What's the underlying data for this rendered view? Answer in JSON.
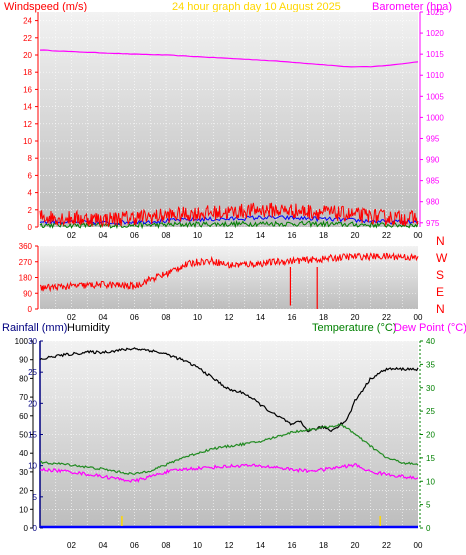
{
  "header": {
    "wind_label": "Windspeed (m/s)",
    "title": "24 hour graph day   10 August 2025",
    "baro_label": "Barometer (hpa)"
  },
  "lower_header": {
    "rain_label": "Rainfall (mm)",
    "humidity_label": "Humidity",
    "temp_label": "Temperature (°C)",
    "dew_label": "Dew Point (°C)"
  },
  "colors": {
    "windspeed": "#ff0000",
    "gust_blue": "#0000ff",
    "avg_green": "#008000",
    "barometer": "#ff00ff",
    "wind_direction": "#ff0000",
    "humidity": "#000000",
    "temperature": "#228b22",
    "dewpoint": "#ff00ff",
    "rainfall": "#0000ff",
    "title": "#ffd700",
    "rain_axis": "#000080",
    "temp_axis": "#008000"
  },
  "chart_data": [
    {
      "type": "line",
      "name": "wind-barometer",
      "x_ticks": [
        "02",
        "04",
        "06",
        "08",
        "10",
        "12",
        "14",
        "16",
        "18",
        "20",
        "22",
        "00"
      ],
      "y_left_ticks": [
        "0",
        "2",
        "4",
        "6",
        "8",
        "10",
        "12",
        "14",
        "16",
        "18",
        "20",
        "22",
        "24"
      ],
      "y_left_range": [
        0,
        25
      ],
      "y_right_ticks": [
        "975",
        "980",
        "985",
        "990",
        "995",
        "1000",
        "1005",
        "1010",
        "1015",
        "1020",
        "1025"
      ],
      "y_right_range": [
        974,
        1025
      ],
      "series": [
        {
          "name": "Windspeed",
          "axis": "left",
          "x": [
            0,
            2,
            4,
            6,
            8,
            10,
            12,
            14,
            16,
            18,
            20,
            22,
            24
          ],
          "y": [
            1.2,
            1.0,
            0.9,
            1.1,
            1.3,
            1.6,
            1.7,
            2.0,
            1.9,
            1.7,
            1.4,
            1.1,
            1.0
          ]
        },
        {
          "name": "Barometer",
          "axis": "right",
          "x": [
            0,
            2,
            4,
            6,
            8,
            10,
            12,
            14,
            16,
            18,
            19.5,
            21,
            22.5,
            24
          ],
          "y": [
            1016,
            1015.6,
            1015.3,
            1015.0,
            1014.8,
            1014.4,
            1014.0,
            1013.6,
            1013.1,
            1012.5,
            1012.0,
            1012.0,
            1012.5,
            1013.2
          ]
        }
      ]
    },
    {
      "type": "scatter",
      "name": "wind-direction",
      "x_ticks": [
        "02",
        "04",
        "06",
        "08",
        "10",
        "12",
        "14",
        "16",
        "18",
        "20",
        "22",
        "00"
      ],
      "y_ticks": [
        "0",
        "90",
        "180",
        "270",
        "360"
      ],
      "y_range": [
        0,
        360
      ],
      "compass_labels": [
        "N",
        "W",
        "S",
        "E",
        "N"
      ],
      "series": [
        {
          "name": "Wind direction",
          "x": [
            0,
            2,
            4,
            6,
            7,
            8,
            9,
            10,
            11,
            12,
            13,
            14,
            15,
            16,
            17,
            18,
            19,
            20,
            21,
            22,
            23,
            24
          ],
          "y": [
            120,
            130,
            140,
            130,
            170,
            200,
            245,
            270,
            275,
            250,
            255,
            260,
            270,
            275,
            280,
            285,
            295,
            300,
            300,
            300,
            300,
            290
          ]
        }
      ]
    },
    {
      "type": "line",
      "name": "temperature-humidity-rain",
      "x_ticks": [
        "02",
        "04",
        "06",
        "08",
        "10",
        "12",
        "14",
        "16",
        "18",
        "20",
        "22",
        "00"
      ],
      "y_humidity_ticks": [
        "0",
        "10",
        "20",
        "30",
        "40",
        "50",
        "60",
        "70",
        "80",
        "90",
        "100"
      ],
      "y_humidity_range": [
        0,
        100
      ],
      "y_rain_ticks": [
        "0",
        "5",
        "10",
        "15",
        "20",
        "25",
        "30"
      ],
      "y_rain_range": [
        0,
        30
      ],
      "y_temp_ticks": [
        "0",
        "5",
        "10",
        "15",
        "20",
        "25",
        "30",
        "35",
        "40"
      ],
      "y_temp_range": [
        0,
        40
      ],
      "series": [
        {
          "name": "Humidity",
          "axis": "humidity",
          "x": [
            0,
            1,
            2,
            3,
            4,
            5,
            6,
            7,
            8,
            9,
            10,
            11,
            12,
            13,
            14,
            15,
            15.5,
            16,
            16.5,
            17,
            17.5,
            18,
            18.5,
            19,
            19.5,
            20,
            21,
            22,
            23,
            24
          ],
          "y": [
            90,
            92,
            93,
            94,
            94,
            95,
            96,
            95,
            93,
            90,
            86,
            80,
            74,
            72,
            66,
            60,
            58,
            55,
            57,
            52,
            53,
            54,
            52,
            55,
            58,
            68,
            80,
            85,
            85,
            85
          ]
        },
        {
          "name": "Temperature",
          "axis": "temp",
          "x": [
            0,
            1,
            2,
            3,
            4,
            5,
            6,
            7,
            8,
            9,
            10,
            11,
            12,
            13,
            14,
            15,
            16,
            17,
            18,
            19,
            19.5,
            20,
            21,
            22,
            23,
            24
          ],
          "y": [
            14,
            13.8,
            13.5,
            13,
            12.6,
            12,
            11.5,
            12.3,
            13.5,
            15,
            16,
            17,
            17.5,
            18,
            18.5,
            19.5,
            20.5,
            21,
            21.5,
            22,
            21.5,
            20,
            17.5,
            15,
            14,
            13.5
          ]
        },
        {
          "name": "Dew Point",
          "axis": "temp",
          "x": [
            0,
            1,
            2,
            3,
            4,
            5,
            6,
            7,
            8,
            9,
            10,
            11,
            12,
            13,
            14,
            15,
            16,
            17,
            18,
            19,
            20,
            21,
            22,
            23,
            24
          ],
          "y": [
            12.5,
            12.3,
            12,
            11.5,
            11,
            10.5,
            10,
            11,
            12,
            12.5,
            12.8,
            13,
            13.2,
            13.4,
            13.2,
            13,
            12.5,
            12.2,
            12.5,
            13,
            13.5,
            12,
            11.5,
            11,
            10.5
          ]
        },
        {
          "name": "Rainfall",
          "axis": "rain",
          "x": [
            0,
            24
          ],
          "y": [
            0,
            0
          ]
        }
      ]
    }
  ]
}
